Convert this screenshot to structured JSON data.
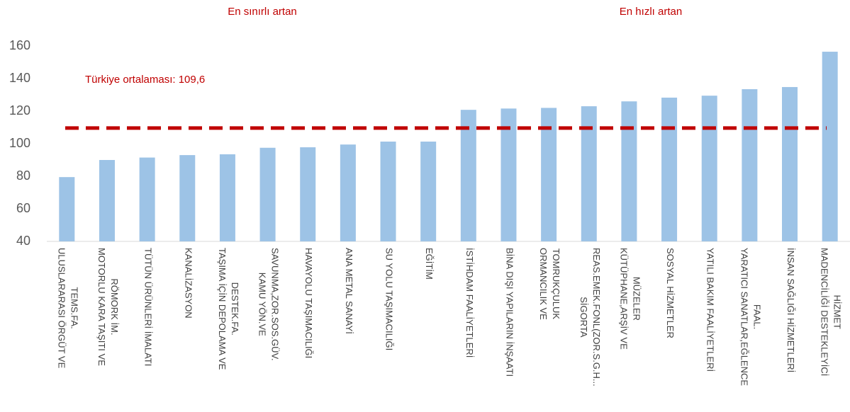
{
  "chart_data": {
    "type": "bar",
    "headers": [
      "En sınırlı artan",
      "En hızlı artan"
    ],
    "categories": [
      "ULUSLARARASI ÖRGÜT VE\nTEMS.FA.",
      "MOTORLU KARA TAŞITI VE\nRÖMORK İM.",
      "TÜTÜN ÜRÜNLERİ İMALATI",
      "KANALİZASYON",
      "TAŞIMA İÇİN DEPOLAMA VE\nDESTEK.FA.",
      "KAMU YÖN.VE\nSAVUNMA,ZOR.SOS.GÜV.",
      "HAVAYOLU TAŞIMACILIĞI",
      "ANA METAL SANAYİ",
      "SU YOLU TAŞIMACILIĞI",
      "EĞİTİM",
      "İSTİHDAM FAALİYETLERİ",
      "BİNA DIŞI YAPILARIN İNŞAATI",
      "ORMANCILIK VE\nTOMRUKÇULUK",
      "SİGORTA\nREAS.EMEK.FONL(ZOR.S.G.H...",
      "KÜTÜPHANE,ARŞİV VE\nMÜZELER",
      "SOSYAL HİZMETLER",
      "YATILI BAKIM FAALİYETLERİ",
      "YARATICI SANATLAR,EĞLENCE\nFAAL.",
      "İNSAN SAĞLIĞI HİZMETLERİ",
      "MADENCİLİĞİ DESTEKLEYİCİ\nHİZMET"
    ],
    "values": [
      79.5,
      90,
      91.5,
      93,
      93.5,
      97.5,
      97.8,
      99.5,
      101.3,
      101.3,
      120.8,
      121.6,
      122,
      123,
      126,
      128.3,
      129.5,
      133.5,
      134.8,
      156.5
    ],
    "color": "#9dc3e6",
    "ylim": [
      40,
      160
    ],
    "yticks": [
      40,
      60,
      80,
      100,
      120,
      140,
      160
    ],
    "reference_line": {
      "value": 109.6,
      "label": "Türkiye ortalaması: 109,6",
      "color": "#c00000"
    }
  }
}
